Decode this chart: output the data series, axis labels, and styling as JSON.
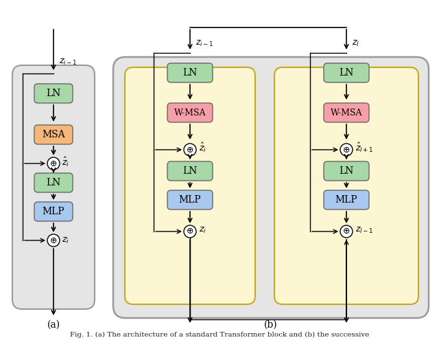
{
  "bg_color": "#f0f0f0",
  "panel_a_bg": "#e8e8e8",
  "panel_b_bg": "#e8e8e8",
  "yellow_bg": "#fdf6d3",
  "yellow_border": "#e0c060",
  "inner_panel_bg": "#f5f0e0",
  "ln_color": "#a8d8a8",
  "msa_color": "#f5b87a",
  "wmsa_color": "#f5a0a8",
  "mlp_color": "#a8c8f0",
  "box_border": "#888888",
  "caption": "(a) The architecture of a standard Transformer block and (b) the successive",
  "label_a": "(a)",
  "label_b": "(b)"
}
